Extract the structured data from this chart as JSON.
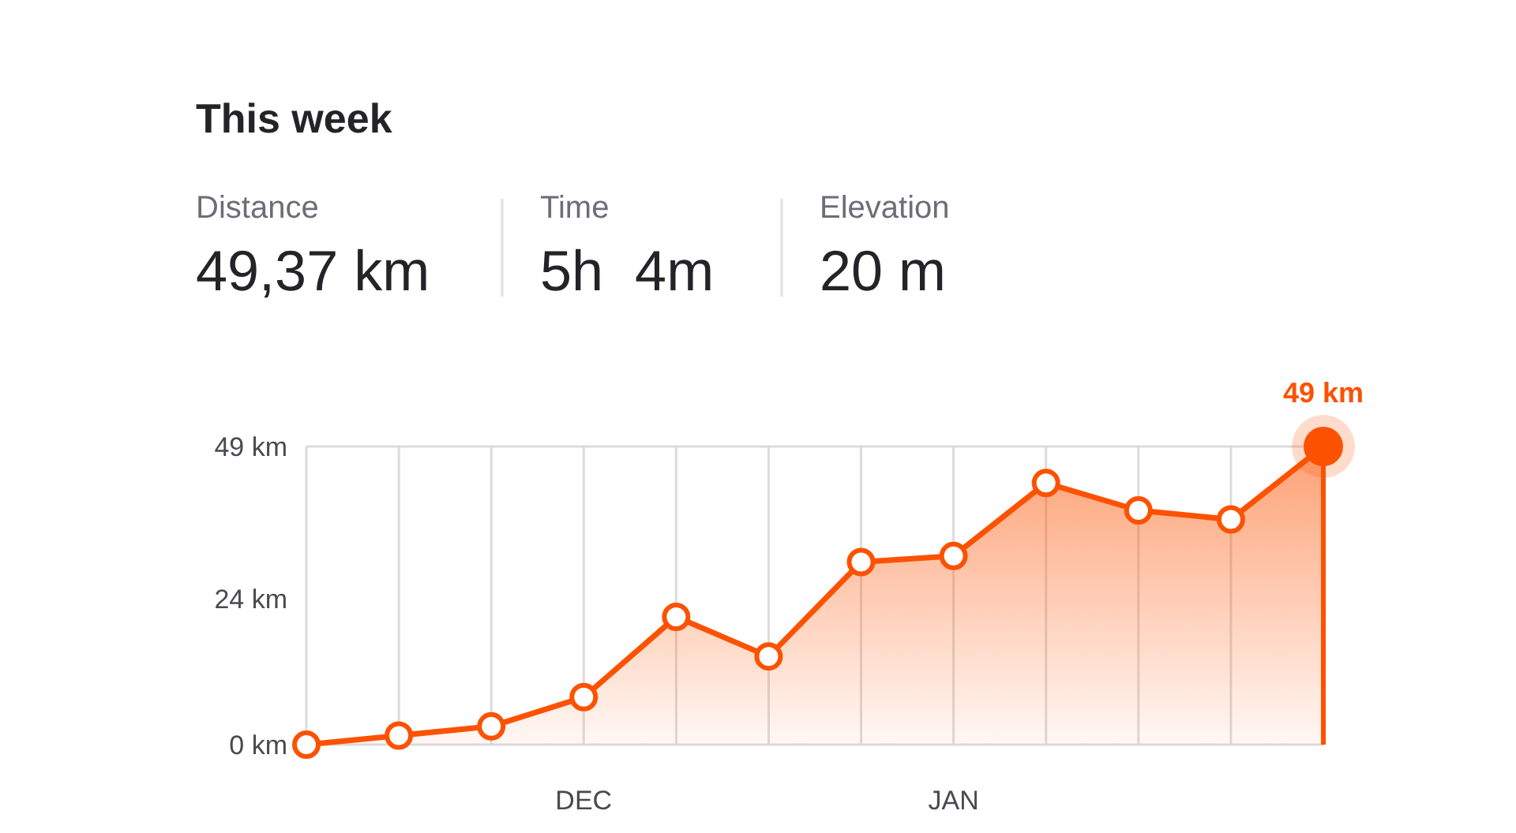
{
  "chart_data": {
    "type": "area",
    "title": "This week",
    "annotations": [
      "Distance",
      "49,37 km",
      "Time",
      "5h  4m",
      "Elevation",
      "20 m"
    ],
    "categories": [
      null,
      null,
      null,
      "DEC",
      null,
      null,
      null,
      "JAN",
      null,
      null,
      null,
      null
    ],
    "series": [
      {
        "color": "#fc5200",
        "values": [
          0,
          1.5,
          3,
          7.8,
          21,
          14.5,
          30,
          31,
          43,
          38.5,
          37,
          49
        ],
        "value_labels": [
          null,
          null,
          null,
          null,
          null,
          null,
          null,
          null,
          null,
          null,
          null,
          "49 km"
        ]
      }
    ],
    "ylim": [
      0,
      49
    ],
    "yticks": [
      {
        "value": 0,
        "label": "0 km"
      },
      {
        "value": 24,
        "label": "24 km"
      },
      {
        "value": 49,
        "label": "49 km"
      }
    ],
    "grid": "x",
    "marker": "circle",
    "line_style": "solid"
  }
}
